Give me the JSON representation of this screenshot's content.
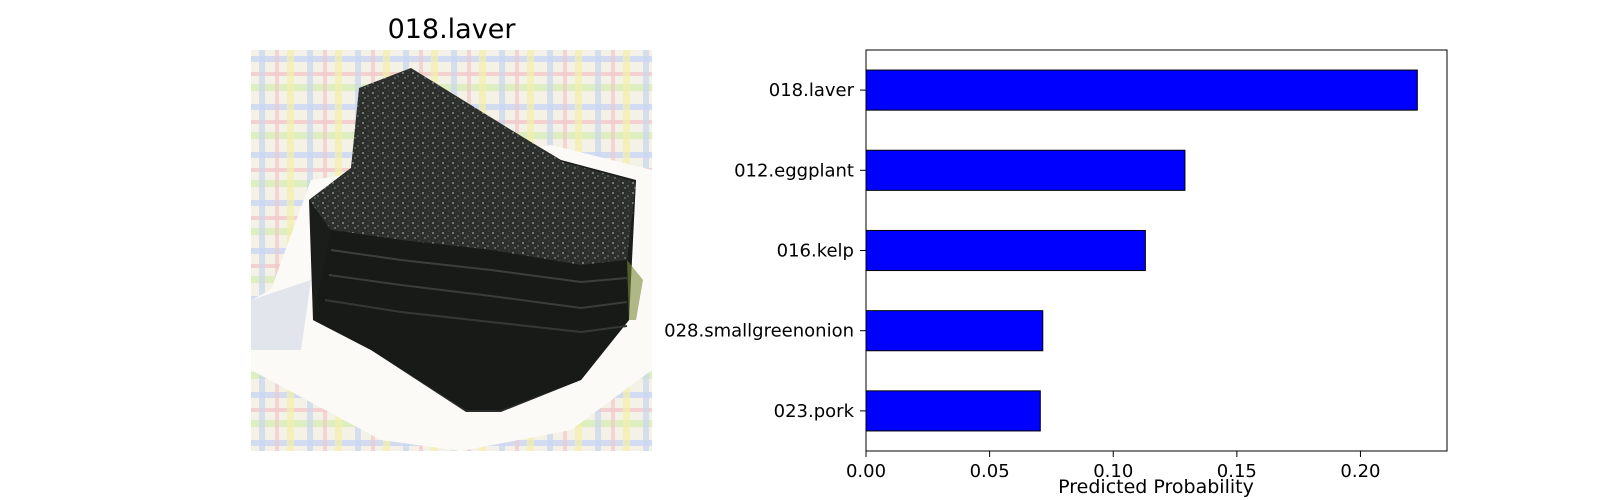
{
  "image_panel": {
    "title": "018.laver",
    "photo_subject": "stack-of-laver-seaweed-sheets-on-plate"
  },
  "colors": {
    "bar_fill": "#0000ff",
    "bar_edge": "#000000",
    "background": "#ffffff"
  },
  "chart_data": {
    "type": "bar",
    "orientation": "horizontal",
    "categories": [
      "018.laver",
      "012.eggplant",
      "016.kelp",
      "028.smallgreenonion",
      "023.pork"
    ],
    "values": [
      0.223,
      0.129,
      0.113,
      0.0715,
      0.0705
    ],
    "title": "",
    "xlabel": "Predicted Probability",
    "ylabel": "",
    "xlim": [
      0.0,
      0.235
    ],
    "xticks": [
      "0.00",
      "0.05",
      "0.10",
      "0.15",
      "0.20"
    ],
    "grid": false
  }
}
